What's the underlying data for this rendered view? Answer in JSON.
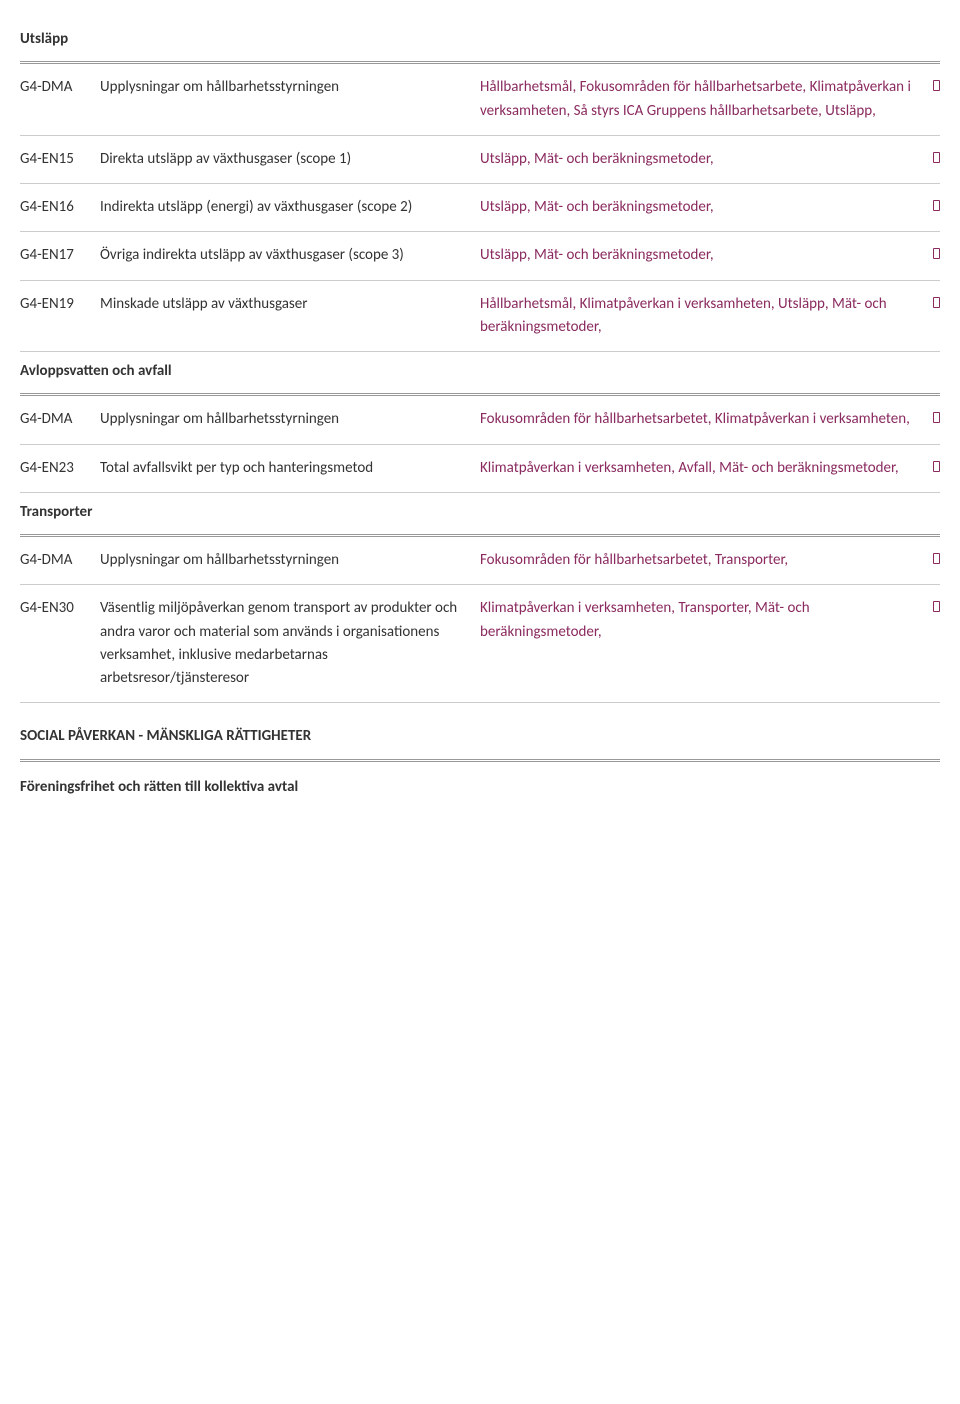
{
  "colors": {
    "text": "#333333",
    "link": "#8a2a5f",
    "rule": "#999999",
    "rowBorder": "#cccccc",
    "background": "#ffffff"
  },
  "typography": {
    "fontFamily": "Calibri, Segoe UI, sans-serif",
    "fontSize": 15,
    "lineHeight": 1.55,
    "headingWeight": 700
  },
  "sections": [
    {
      "heading": "Utsläpp",
      "rows": [
        {
          "code": "G4-DMA",
          "desc": "Upplysningar om hållbarhetsstyrningen",
          "links": [
            "Hållbarhetsmål",
            "Fokusområden för hållbarhetsarbete",
            "Klimatpåverkan i verksamheten",
            "Så styrs ICA Gruppens hållbarhetsarbete",
            "Utsläpp"
          ],
          "hasIcon": true
        },
        {
          "code": "G4-EN15",
          "desc": "Direkta utsläpp av växthusgaser (scope 1)",
          "links": [
            "Utsläpp",
            "Mät- och beräkningsmetoder"
          ],
          "hasIcon": true
        },
        {
          "code": "G4-EN16",
          "desc": "Indirekta utsläpp (energi) av växthusgaser (scope 2)",
          "links": [
            "Utsläpp",
            "Mät- och beräkningsmetoder"
          ],
          "hasIcon": true
        },
        {
          "code": "G4-EN17",
          "desc": "Övriga indirekta utsläpp av växthusgaser (scope 3)",
          "links": [
            "Utsläpp",
            "Mät- och beräkningsmetoder"
          ],
          "hasIcon": true
        },
        {
          "code": "G4-EN19",
          "desc": "Minskade utsläpp av växthusgaser",
          "links": [
            "Hållbarhetsmål",
            "Klimatpåverkan i verksamheten",
            "Utsläpp",
            "Mät- och beräkningsmetoder"
          ],
          "hasIcon": true
        }
      ]
    },
    {
      "heading": "Avloppsvatten och avfall",
      "rows": [
        {
          "code": "G4-DMA",
          "desc": "Upplysningar om hållbarhetsstyrningen",
          "links": [
            "Fokusområden för hållbarhetsarbetet",
            "Klimatpåverkan i verksamheten"
          ],
          "hasIcon": true
        },
        {
          "code": "G4-EN23",
          "desc": "Total avfallsvikt per typ och hanteringsmetod",
          "links": [
            "Klimatpåverkan i verksamheten",
            "Avfall",
            "Mät- och beräkningsmetoder"
          ],
          "hasIcon": true
        }
      ]
    },
    {
      "heading": "Transporter",
      "rows": [
        {
          "code": "G4-DMA",
          "desc": "Upplysningar om hållbarhetsstyrningen",
          "links": [
            "Fokusområden för hållbarhetsarbetet",
            "Transporter"
          ],
          "hasIcon": true
        },
        {
          "code": "G4-EN30",
          "desc": "Väsentlig miljöpåverkan genom transport av produkter och andra varor och material som används i organisationens verksamhet, inklusive medarbetarnas arbetsresor/tjänsteresor",
          "links": [
            "Klimatpåverkan i verksamheten",
            "Transporter",
            "Mät- och beräkningsmetoder"
          ],
          "hasIcon": true
        }
      ]
    }
  ],
  "majorHeading": "SOCIAL PÅVERKAN - MÄNSKLIGA RÄTTIGHETER",
  "subHeading": "Föreningsfrihet och rätten till kollektiva avtal"
}
